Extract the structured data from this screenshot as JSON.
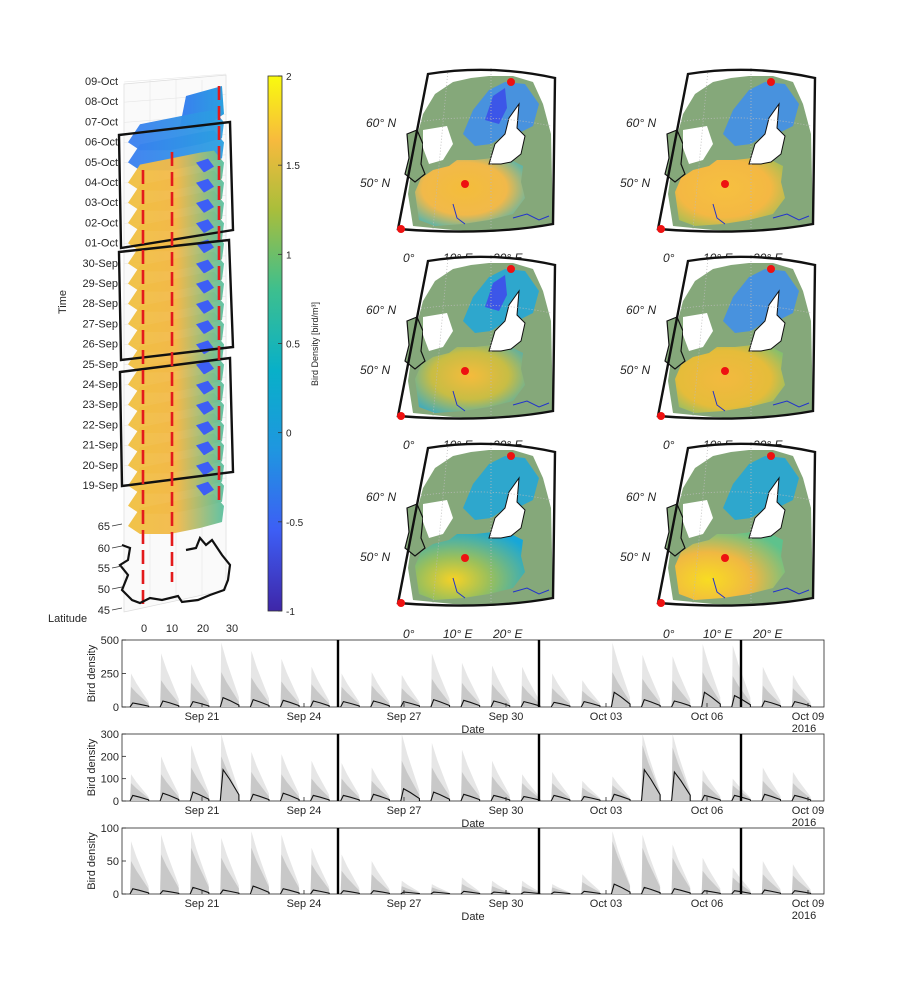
{
  "cube": {
    "time_axis_label": "Time",
    "dates": [
      "09-Oct",
      "08-Oct",
      "07-Oct",
      "06-Oct",
      "05-Oct",
      "04-Oct",
      "03-Oct",
      "02-Oct",
      "01-Oct",
      "30-Sep",
      "29-Sep",
      "28-Sep",
      "27-Sep",
      "26-Sep",
      "25-Sep",
      "24-Sep",
      "23-Sep",
      "22-Sep",
      "21-Sep",
      "20-Sep",
      "19-Sep"
    ],
    "lat_axis_label": "Latitude",
    "lat_ticks": [
      "65",
      "60",
      "55",
      "50",
      "45"
    ],
    "lon_ticks": [
      "0",
      "10",
      "20",
      "30"
    ]
  },
  "colorbar": {
    "label": "Bird Density [bird/m³]",
    "ticks": [
      "2",
      "1.5",
      "1",
      "0.5",
      "0",
      "-0.5",
      "-1"
    ],
    "range": [
      -1,
      2
    ]
  },
  "maps": {
    "lat_labels": [
      "60° N",
      "50° N"
    ],
    "lon_labels": [
      "0°",
      "10° E",
      "20° E"
    ]
  },
  "chart_data": [
    {
      "type": "area",
      "ylabel": "Bird density",
      "xlabel": "Date",
      "ylim": [
        0,
        500
      ],
      "yticks": [
        "0",
        "250",
        "500"
      ],
      "xticks": [
        "Sep 21",
        "Sep 24",
        "Sep 27",
        "Sep 30",
        "Oct 03",
        "Oct 06",
        "Oct 09"
      ],
      "year_label": "2016",
      "night_peaks_median": [
        30,
        45,
        40,
        70,
        55,
        50,
        45,
        40,
        45,
        40,
        55,
        50,
        45,
        40,
        35,
        40,
        110,
        55,
        45,
        110,
        85,
        45,
        40
      ],
      "night_peaks_outer": [
        250,
        400,
        320,
        480,
        420,
        360,
        300,
        250,
        260,
        240,
        400,
        330,
        310,
        300,
        250,
        200,
        480,
        390,
        380,
        470,
        460,
        300,
        240
      ],
      "night_peaks_mid": [
        150,
        200,
        180,
        260,
        220,
        190,
        170,
        150,
        160,
        140,
        210,
        180,
        170,
        160,
        140,
        120,
        260,
        210,
        200,
        260,
        230,
        160,
        140
      ]
    },
    {
      "type": "area",
      "ylabel": "Bird density",
      "xlabel": "Date",
      "ylim": [
        0,
        300
      ],
      "yticks": [
        "0",
        "100",
        "200",
        "300"
      ],
      "xticks": [
        "Sep 21",
        "Sep 24",
        "Sep 27",
        "Sep 30",
        "Oct 03",
        "Oct 06",
        "Oct 09"
      ],
      "year_label": "2016",
      "night_peaks_median": [
        25,
        35,
        40,
        140,
        30,
        35,
        25,
        25,
        30,
        55,
        40,
        30,
        25,
        20,
        25,
        20,
        30,
        140,
        130,
        25,
        25,
        30,
        25
      ],
      "night_peaks_outer": [
        120,
        200,
        250,
        300,
        220,
        210,
        180,
        170,
        150,
        300,
        260,
        230,
        180,
        120,
        130,
        90,
        110,
        300,
        300,
        140,
        100,
        150,
        130
      ],
      "night_peaks_mid": [
        80,
        120,
        150,
        200,
        130,
        120,
        100,
        100,
        90,
        180,
        150,
        130,
        110,
        80,
        80,
        60,
        70,
        250,
        240,
        90,
        70,
        90,
        80
      ]
    },
    {
      "type": "area",
      "ylabel": "Bird density",
      "xlabel": "Date",
      "ylim": [
        0,
        100
      ],
      "yticks": [
        "0",
        "50",
        "100"
      ],
      "xticks": [
        "Sep 21",
        "Sep 24",
        "Sep 27",
        "Sep 30",
        "Oct 03",
        "Oct 06",
        "Oct 09"
      ],
      "year_label": "2016",
      "night_peaks_median": [
        8,
        5,
        10,
        6,
        12,
        8,
        6,
        5,
        5,
        3,
        3,
        4,
        3,
        3,
        3,
        4,
        15,
        10,
        8,
        5,
        5,
        6,
        5
      ],
      "night_peaks_outer": [
        80,
        90,
        95,
        85,
        95,
        90,
        70,
        60,
        50,
        20,
        15,
        25,
        20,
        20,
        15,
        30,
        95,
        90,
        75,
        55,
        40,
        50,
        45
      ],
      "night_peaks_mid": [
        50,
        60,
        70,
        55,
        70,
        60,
        45,
        35,
        30,
        12,
        10,
        15,
        12,
        12,
        10,
        18,
        80,
        70,
        55,
        35,
        25,
        30,
        28
      ]
    }
  ]
}
